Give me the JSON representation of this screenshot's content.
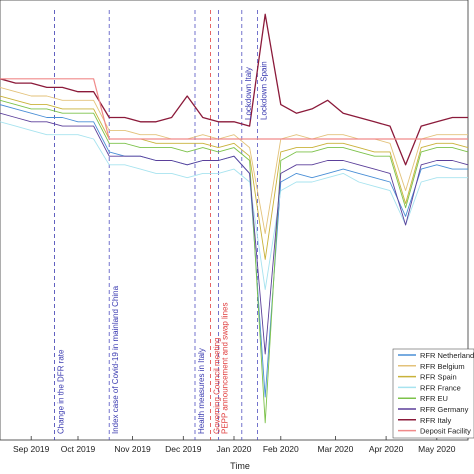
{
  "chart_data": {
    "type": "line",
    "title": "",
    "xlabel": "Time",
    "ylabel": "",
    "x_ticks": [
      "Sep 2019",
      "Oct 2019",
      "Nov 2019",
      "Dec 2019",
      "Jan 2020",
      "Feb 2020",
      "Mar 2020",
      "Apr 2020",
      "May 2020"
    ],
    "x": [
      0,
      2,
      4,
      6,
      8,
      10,
      12,
      14,
      16,
      18,
      20,
      22,
      24,
      26,
      28,
      30,
      32,
      34,
      36,
      38,
      40,
      42,
      44,
      46,
      48,
      50,
      52,
      54,
      56,
      58,
      60
    ],
    "ylim": [
      0,
      100
    ],
    "grid": false,
    "legend_position": "bottom-right",
    "series": [
      {
        "name": "RFR Netherlands",
        "color": "#4a8fd6",
        "values": [
          78,
          77,
          76,
          75,
          75,
          74,
          74,
          67,
          66,
          66,
          65,
          65,
          64,
          65,
          65,
          66,
          62,
          10,
          60,
          62,
          61,
          62,
          63,
          62,
          61,
          60,
          52,
          63,
          64,
          63,
          63
        ]
      },
      {
        "name": "RFR Belgium",
        "color": "#e3c27a",
        "values": [
          82,
          81,
          80,
          80,
          79,
          79,
          79,
          72,
          72,
          71,
          71,
          70,
          70,
          71,
          70,
          71,
          68,
          48,
          70,
          71,
          70,
          71,
          71,
          70,
          70,
          69,
          58,
          70,
          71,
          71,
          71
        ]
      },
      {
        "name": "RFR Spain",
        "color": "#c9b23a",
        "values": [
          80,
          79,
          78,
          78,
          77,
          77,
          77,
          70,
          70,
          70,
          69,
          69,
          69,
          69,
          68,
          69,
          66,
          42,
          67,
          68,
          68,
          69,
          69,
          68,
          67,
          67,
          55,
          68,
          69,
          69,
          68
        ]
      },
      {
        "name": "RFR France",
        "color": "#a7e3ef",
        "values": [
          74,
          73,
          72,
          71,
          71,
          71,
          70,
          64,
          64,
          63,
          62,
          62,
          61,
          62,
          62,
          63,
          60,
          35,
          58,
          60,
          60,
          61,
          62,
          60,
          59,
          58,
          50,
          60,
          61,
          61,
          61
        ]
      },
      {
        "name": "RFR EU",
        "color": "#7cc24a",
        "values": [
          79,
          78,
          77,
          77,
          76,
          76,
          76,
          69,
          69,
          68,
          68,
          68,
          67,
          68,
          67,
          68,
          65,
          4,
          65,
          67,
          67,
          68,
          68,
          67,
          66,
          66,
          54,
          67,
          68,
          68,
          67
        ]
      },
      {
        "name": "RFR Germany",
        "color": "#5b3f9a",
        "values": [
          76,
          75,
          74,
          74,
          73,
          73,
          73,
          66,
          66,
          66,
          65,
          65,
          64,
          65,
          65,
          66,
          62,
          20,
          62,
          64,
          64,
          65,
          65,
          64,
          63,
          62,
          50,
          64,
          65,
          65,
          64
        ]
      },
      {
        "name": "RFR Italy",
        "color": "#8b1a3a",
        "values": [
          84,
          83,
          83,
          82,
          82,
          81,
          81,
          75,
          75,
          74,
          74,
          75,
          80,
          75,
          74,
          74,
          73,
          99,
          78,
          76,
          77,
          79,
          76,
          75,
          74,
          73,
          64,
          73,
          74,
          75,
          75
        ]
      },
      {
        "name": "Deposit Facility",
        "color": "#f08a8a",
        "values": [
          84,
          84,
          84,
          84,
          84,
          84,
          84,
          70,
          70,
          70,
          70,
          70,
          70,
          70,
          70,
          70,
          70,
          70,
          70,
          70,
          70,
          70,
          70,
          70,
          70,
          70,
          70,
          70,
          70,
          70,
          70
        ]
      }
    ],
    "vlines": [
      {
        "x": 7,
        "label": "Change in the DFR rate",
        "color": "#3a3ab0",
        "text_color": "#3a3ab0"
      },
      {
        "x": 14,
        "label": "Index case of Covid-19 in mainland China",
        "color": "#5050c0",
        "text_color": "#3a3ab0"
      },
      {
        "x": 25,
        "label": "Health measures in Italy",
        "color": "#5050c0",
        "text_color": "#3a3ab0"
      },
      {
        "x": 27,
        "label": "Governing Council meeting",
        "color": "#e04040",
        "text_color": "#e04040"
      },
      {
        "x": 28,
        "label": "PEPP announcement and swap lines",
        "color": "#5050c0",
        "text_color": "#e04040"
      },
      {
        "x": 31,
        "label": "Lockdown Italy",
        "color": "#5050c0",
        "text_color": "#3a3ab0"
      },
      {
        "x": 33,
        "label": "Lockdown Spain",
        "color": "#5050c0",
        "text_color": "#3a3ab0"
      }
    ]
  }
}
